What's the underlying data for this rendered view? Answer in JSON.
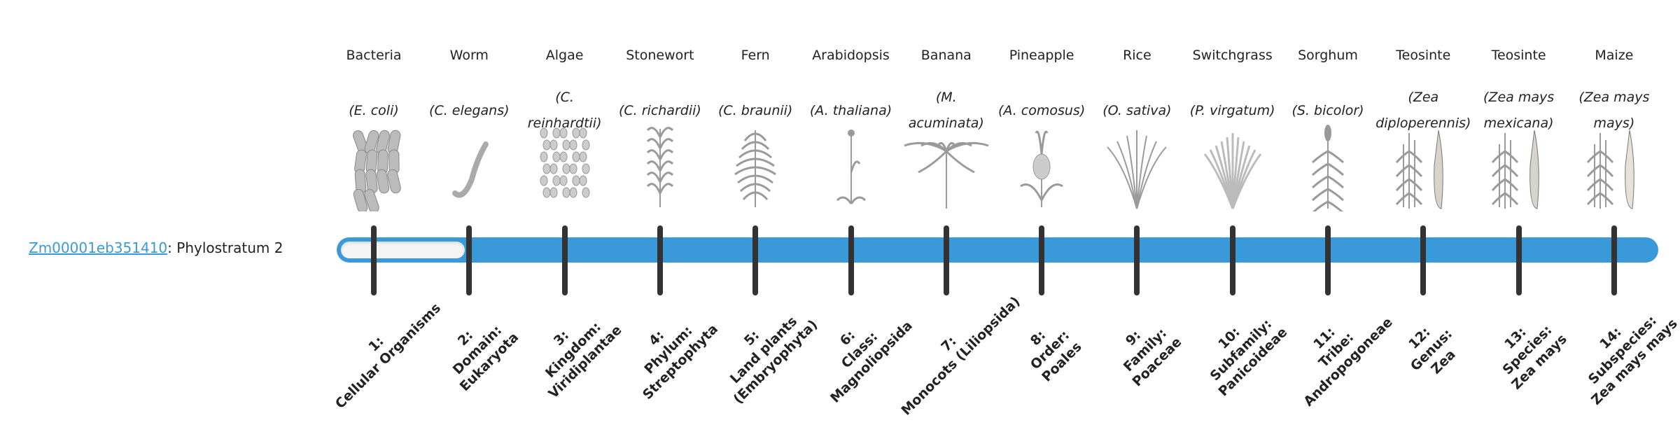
{
  "gene": {
    "id": "Zm00001eb351410",
    "separator": ":",
    "label": "Phylostratum 2",
    "phylostratum": 2,
    "total_strata": 14
  },
  "colors": {
    "bar": "#3a9ad9",
    "tick": "#333333",
    "link": "#3a9ad9",
    "fill": "#f5f5f5",
    "illustration": "#9a9a9a"
  },
  "organisms": [
    {
      "common": "Bacteria",
      "sci": "(E. coli)",
      "icon": "bacteria-illustration",
      "stratum": "1: Cellular Organisms"
    },
    {
      "common": "Worm",
      "sci": "(C. elegans)",
      "icon": "worm-illustration",
      "stratum": "2: Domain: Eukaryota"
    },
    {
      "common": "Algae",
      "sci": "(C. reinhardtii)",
      "icon": "algae-illustration",
      "stratum": "3: Kingdom: Viridiplantae"
    },
    {
      "common": "Stonewort",
      "sci": "(C. richardii)",
      "icon": "stonewort-illustration",
      "stratum": "4: Phylum: Streptophyta"
    },
    {
      "common": "Fern",
      "sci": "(C. braunii)",
      "icon": "fern-illustration",
      "stratum": "5: Land plants (Embryophyta)"
    },
    {
      "common": "Arabidopsis",
      "sci": "(A. thaliana)",
      "icon": "arabidopsis-illustration",
      "stratum": "6: Class: Magnoliopsida"
    },
    {
      "common": "Banana",
      "sci": "(M. acuminata)",
      "icon": "banana-illustration",
      "stratum": "7: Monocots (Liliopsida)"
    },
    {
      "common": "Pineapple",
      "sci": "(A. comosus)",
      "icon": "pineapple-illustration",
      "stratum": "8: Order: Poales"
    },
    {
      "common": "Rice",
      "sci": "(O. sativa)",
      "icon": "rice-illustration",
      "stratum": "9: Family: Poaceae"
    },
    {
      "common": "Switchgrass",
      "sci": "(P. virgatum)",
      "icon": "switchgrass-illustration",
      "stratum": "10: Subfamily: Panicoideae"
    },
    {
      "common": "Sorghum",
      "sci": "(S. bicolor)",
      "icon": "sorghum-illustration",
      "stratum": "11: Tribe: Andropogoneae"
    },
    {
      "common": "Teosinte",
      "sci": "(Zea diploperennis)",
      "icon": "teosinte-illustration",
      "stratum": "12: Genus: Zea"
    },
    {
      "common": "Teosinte",
      "sci": "(Zea mays mexicana)",
      "icon": "teosinte-mexicana-illustration",
      "stratum": "13: Species: Zea mays"
    },
    {
      "common": "Maize",
      "sci": "(Zea mays mays)",
      "icon": "maize-illustration",
      "stratum": "14: Subspecies: Zea mays mays"
    }
  ]
}
